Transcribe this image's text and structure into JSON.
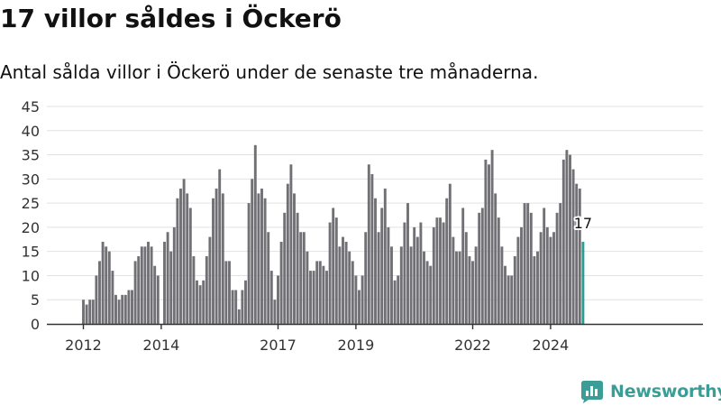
{
  "title": "17 villor såldes i Öckerö",
  "subtitle": "Antal sålda villor i Öckerö under de senaste tre månaderna.",
  "brand": {
    "name": "Newsworthy",
    "color": "#3a9e96",
    "icon": "newsworthy-logo-icon"
  },
  "chart_data": {
    "type": "bar",
    "title": "",
    "xlabel": "",
    "ylabel": "",
    "x_start": "2012-01",
    "ylim": [
      0,
      45
    ],
    "yticks": [
      0,
      5,
      10,
      15,
      20,
      25,
      30,
      35,
      40,
      45
    ],
    "xticks": [
      {
        "label": "2012",
        "month": "2012-01"
      },
      {
        "label": "2014",
        "month": "2014-01"
      },
      {
        "label": "2017",
        "month": "2017-01"
      },
      {
        "label": "2019",
        "month": "2019-01"
      },
      {
        "label": "2022",
        "month": "2022-01"
      },
      {
        "label": "2024",
        "month": "2024-01"
      }
    ],
    "grid": true,
    "bar_color": "#717075",
    "highlight_color": "#2a9d93",
    "highlight_label": "17",
    "values": [
      5,
      4,
      5,
      5,
      10,
      13,
      17,
      16,
      15,
      11,
      6,
      5,
      6,
      6,
      7,
      7,
      13,
      14,
      16,
      16,
      17,
      16,
      12,
      10,
      0,
      17,
      19,
      15,
      20,
      26,
      28,
      30,
      27,
      24,
      14,
      9,
      8,
      9,
      14,
      18,
      26,
      28,
      32,
      27,
      13,
      13,
      7,
      7,
      3,
      7,
      9,
      25,
      30,
      37,
      27,
      28,
      26,
      19,
      11,
      5,
      10,
      17,
      23,
      29,
      33,
      27,
      23,
      19,
      19,
      15,
      11,
      11,
      13,
      13,
      12,
      11,
      21,
      24,
      22,
      16,
      18,
      17,
      15,
      13,
      10,
      7,
      10,
      19,
      33,
      31,
      26,
      19,
      24,
      28,
      20,
      16,
      9,
      10,
      16,
      21,
      25,
      16,
      20,
      18,
      21,
      15,
      13,
      12,
      20,
      22,
      22,
      21,
      26,
      29,
      18,
      15,
      15,
      24,
      19,
      14,
      13,
      16,
      23,
      24,
      34,
      33,
      36,
      27,
      22,
      16,
      12,
      10,
      10,
      14,
      18,
      20,
      25,
      25,
      23,
      14,
      15,
      19,
      24,
      20,
      18,
      19,
      23,
      25,
      34,
      36,
      35,
      32,
      29,
      28,
      17
    ]
  }
}
